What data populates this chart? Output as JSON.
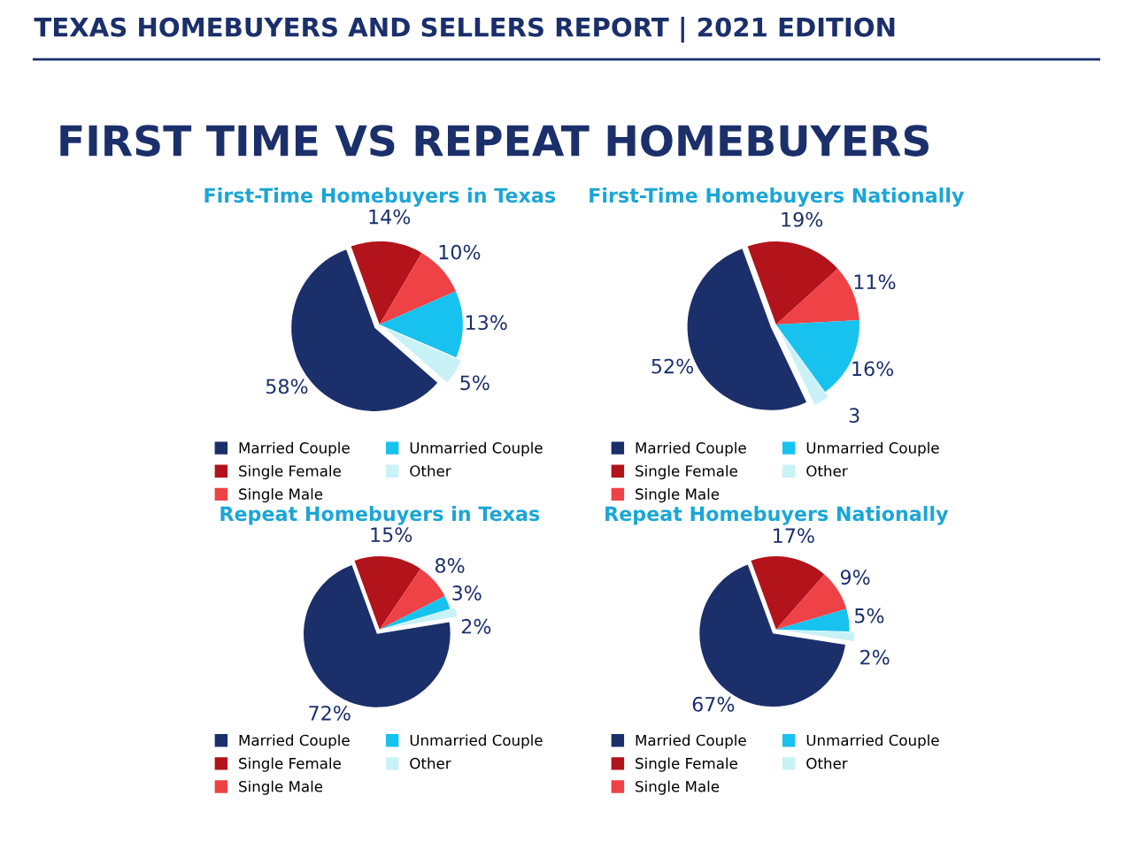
{
  "chart_data": [
    {
      "type": "other",
      "title": "TEXAS HOMEBUYERS AND SELLERS REPORT | 2021 EDITION",
      "subtitle": "FIRST TIME VS REPEAT HOMEBUYERS"
    },
    {
      "type": "pie",
      "title": "First-Time Homebuyers in Texas",
      "categories": [
        "Married Couple",
        "Single Female",
        "Single Male",
        "Unmarried Couple",
        "Other"
      ],
      "values": [
        58,
        14,
        10,
        13,
        5
      ],
      "value_labels": [
        "58%",
        "14%",
        "10%",
        "13%",
        "5%"
      ],
      "colors": [
        "#1b2f6b",
        "#b3131b",
        "#ee4247",
        "#17c2ee",
        "#c8f2f6"
      ],
      "legend": "bottom"
    },
    {
      "type": "pie",
      "title": "First-Time Homebuyers Nationally",
      "categories": [
        "Married Couple",
        "Single Female",
        "Single Male",
        "Unmarried Couple",
        "Other"
      ],
      "values": [
        52,
        19,
        11,
        16,
        3
      ],
      "value_labels": [
        "52%",
        "19%",
        "11%",
        "16%",
        "3"
      ],
      "colors": [
        "#1b2f6b",
        "#b3131b",
        "#ee4247",
        "#17c2ee",
        "#c8f2f6"
      ],
      "legend": "bottom"
    },
    {
      "type": "pie",
      "title": "Repeat Homebuyers in Texas",
      "categories": [
        "Married Couple",
        "Single Female",
        "Single Male",
        "Unmarried Couple",
        "Other"
      ],
      "values": [
        72,
        15,
        8,
        3,
        2
      ],
      "value_labels": [
        "72%",
        "15%",
        "8%",
        "3%",
        "2%"
      ],
      "colors": [
        "#1b2f6b",
        "#b3131b",
        "#ee4247",
        "#17c2ee",
        "#c8f2f6"
      ],
      "legend": "bottom"
    },
    {
      "type": "pie",
      "title": "Repeat Homebuyers Nationally",
      "categories": [
        "Married Couple",
        "Single Female",
        "Single Male",
        "Unmarried Couple",
        "Other"
      ],
      "values": [
        67,
        17,
        9,
        5,
        2
      ],
      "value_labels": [
        "67%",
        "17%",
        "9%",
        "5%",
        "2%"
      ],
      "colors": [
        "#1b2f6b",
        "#b3131b",
        "#ee4247",
        "#17c2ee",
        "#c8f2f6"
      ],
      "legend": "bottom"
    }
  ]
}
